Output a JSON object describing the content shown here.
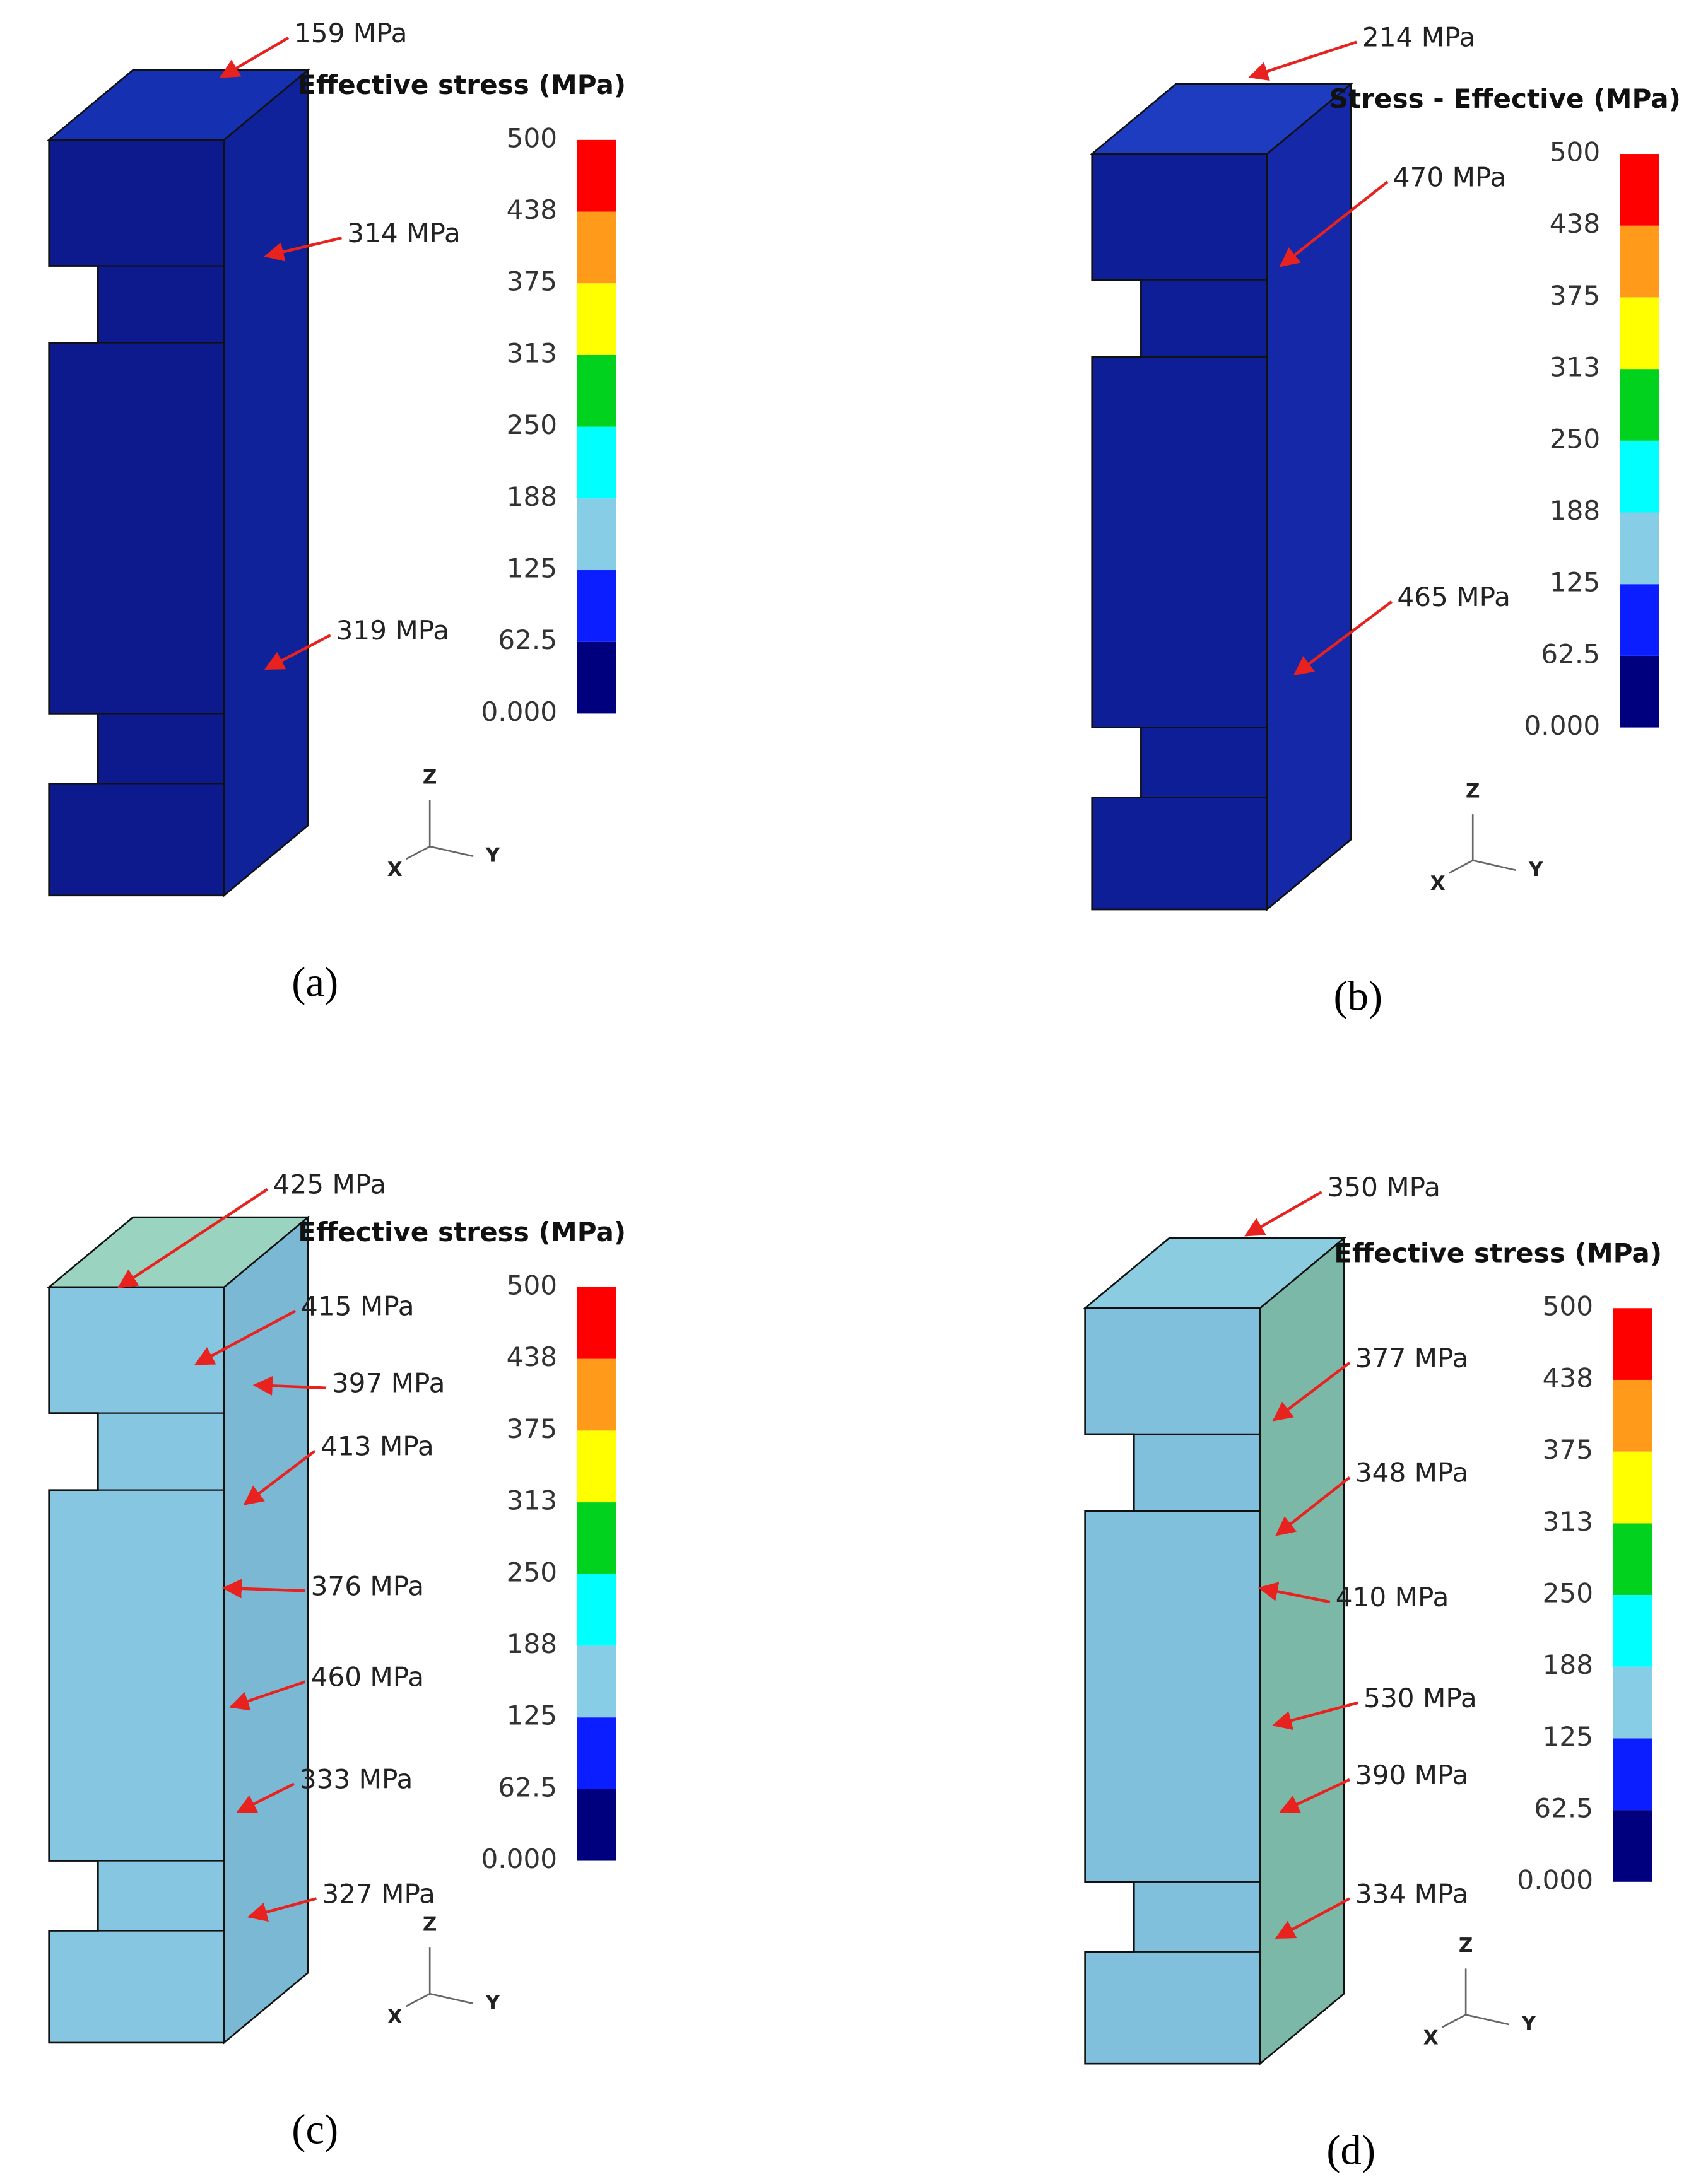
{
  "panels": [
    {
      "caption": "(a)",
      "legend_title": "Effective stress (MPa)",
      "face_color": "#0c1a8e",
      "side_color": "#10229a",
      "top_color": "#1530b0",
      "annotations": [
        "159 MPa",
        "314  MPa",
        "319 MPa"
      ],
      "axes": [
        "Z",
        "X",
        "Y"
      ]
    },
    {
      "caption": "(b)",
      "legend_title": "Stress - Effective (MPa)",
      "face_color": "#0e1e96",
      "side_color": "#1428a8",
      "top_color": "#1e3cc0",
      "annotations": [
        "214 MPa",
        "470 MPa",
        "465 MPa"
      ],
      "axes": [
        "Z",
        "X",
        "Y"
      ]
    },
    {
      "caption": "(c)",
      "legend_title": "Effective stress (MPa)",
      "face_color": "#86c6e0",
      "side_color": "#7ab8d4",
      "top_color": "#9ad4c0",
      "annotations": [
        "425  MPa",
        "415  MPa",
        "397  MPa",
        "413  MPa",
        "376  MPa",
        "460  MPa",
        "333  MPa",
        "327  MPa"
      ],
      "axes": [
        "Z",
        "X",
        "Y"
      ]
    },
    {
      "caption": "(d)",
      "legend_title": "Effective stress (MPa)",
      "face_color": "#80c0dc",
      "side_color": "#7cb8a8",
      "top_color": "#8ccce0",
      "annotations": [
        "350 MPa",
        "377  MPa",
        "348  MPa",
        "410  MPa",
        "530  MPa",
        "390  MPa",
        "334  MPa"
      ],
      "axes": [
        "Z",
        "X",
        "Y"
      ]
    }
  ],
  "colorbar": {
    "labels": [
      "0.000",
      "62.5",
      "125",
      "188",
      "250",
      "313",
      "375",
      "438",
      "500"
    ],
    "colors": [
      "#00007f",
      "#0a1eff",
      "#87cde6",
      "#00ffff",
      "#00d21e",
      "#ffff00",
      "#ff9a1a",
      "#ff0000"
    ]
  }
}
